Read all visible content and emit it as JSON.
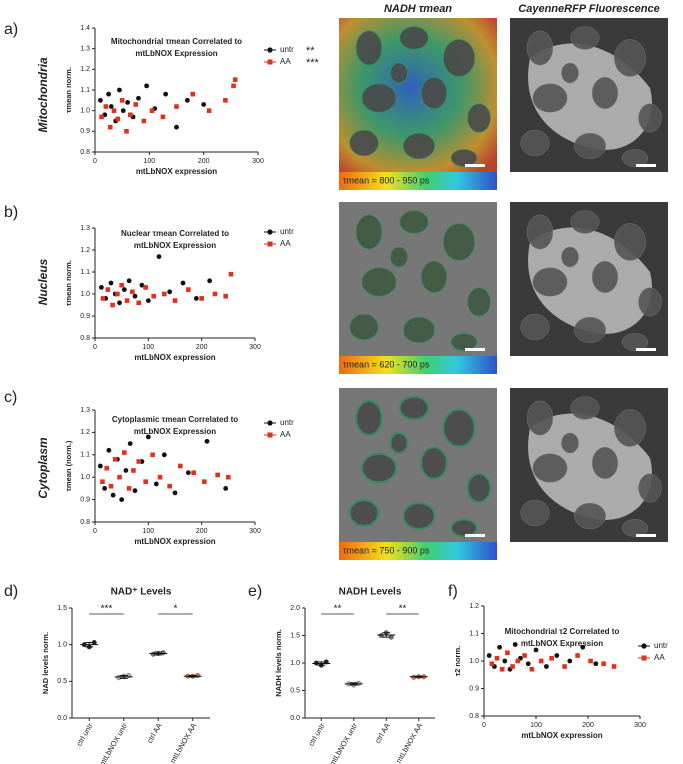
{
  "figure": {
    "panel_labels": [
      "a)",
      "b)",
      "c)",
      "d)",
      "e)",
      "f)"
    ],
    "row_labels": [
      "Mitochondria",
      "Nucleus",
      "Cytoplasm"
    ],
    "column_titles": [
      "NADH τmean",
      "CayenneRFP Fluorescence"
    ],
    "colorbar_labels": [
      "τmean = 800 - 950 ps",
      "τmean = 620 - 700 ps",
      "τmean = 750 - 900 ps"
    ]
  },
  "chart_data": [
    {
      "type": "scatter",
      "title": [
        "Mitochondrial τmean Correlated to",
        "mtLbNOX Expression"
      ],
      "x_label": "mtLbNOX expression",
      "y_label": "τmean norm.",
      "xlim": [
        0,
        300
      ],
      "xticks": [
        0,
        100,
        200,
        300
      ],
      "ylim": [
        0.8,
        1.4
      ],
      "yticks": [
        {
          "value": 0.8,
          "label": "0.8"
        },
        {
          "value": 0.9,
          "label": "0.9"
        },
        {
          "value": 1.0,
          "label": "1.0"
        },
        {
          "value": 1.1,
          "label": "1.1"
        },
        {
          "value": 1.2,
          "label": "1.2"
        },
        {
          "value": 1.3,
          "label": "1.3"
        },
        {
          "value": 1.4,
          "label": "1.4"
        }
      ],
      "legend_notes": [
        "**",
        "***"
      ],
      "series": [
        {
          "name": "untr",
          "color": "#111111",
          "marker": "circle",
          "x": [
            10,
            18,
            25,
            30,
            38,
            45,
            52,
            60,
            70,
            80,
            95,
            110,
            130,
            150,
            170,
            200
          ],
          "values": [
            1.05,
            0.98,
            1.08,
            1.02,
            0.95,
            1.1,
            1.0,
            1.04,
            0.97,
            1.06,
            1.12,
            1.01,
            1.08,
            0.92,
            1.05,
            1.03
          ]
        },
        {
          "name": "AA",
          "color": "#e0301e",
          "marker": "square",
          "x": [
            12,
            20,
            28,
            35,
            42,
            50,
            58,
            65,
            75,
            90,
            105,
            125,
            150,
            180,
            210,
            240,
            255,
            258
          ],
          "values": [
            0.97,
            1.02,
            0.92,
            1.0,
            0.96,
            1.05,
            0.9,
            0.98,
            1.03,
            0.95,
            1.0,
            0.97,
            1.02,
            1.08,
            1.0,
            1.05,
            1.12,
            1.15
          ]
        }
      ]
    },
    {
      "type": "scatter",
      "title": [
        "Nuclear τmean Correlated to",
        "mtLbNOX Expression"
      ],
      "x_label": "mtLbNOX expression",
      "y_label": "τmean norm.",
      "xlim": [
        0,
        300
      ],
      "xticks": [
        0,
        100,
        200,
        300
      ],
      "ylim": [
        0.8,
        1.3
      ],
      "yticks": [
        {
          "value": 0.8,
          "label": "0.8"
        },
        {
          "value": 0.9,
          "label": "0.9"
        },
        {
          "value": 1.0,
          "label": "1.0"
        },
        {
          "value": 1.1,
          "label": "1.1"
        },
        {
          "value": 1.2,
          "label": "1.2"
        },
        {
          "value": 1.3,
          "label": "1.3"
        }
      ],
      "series": [
        {
          "name": "untr",
          "color": "#111111",
          "marker": "circle",
          "x": [
            12,
            20,
            30,
            38,
            46,
            55,
            64,
            75,
            88,
            100,
            120,
            140,
            165,
            190,
            215
          ],
          "values": [
            1.03,
            0.98,
            1.05,
            1.0,
            0.96,
            1.02,
            1.06,
            0.99,
            1.04,
            0.97,
            1.17,
            1.01,
            1.05,
            0.98,
            1.06
          ]
        },
        {
          "name": "AA",
          "color": "#e0301e",
          "marker": "square",
          "x": [
            15,
            24,
            33,
            42,
            50,
            60,
            70,
            82,
            95,
            110,
            130,
            150,
            175,
            200,
            225,
            245,
            255
          ],
          "values": [
            0.98,
            1.02,
            0.95,
            1.0,
            1.04,
            0.97,
            1.01,
            0.96,
            1.03,
            0.99,
            1.0,
            0.97,
            1.02,
            0.98,
            1.0,
            0.99,
            1.09
          ]
        }
      ]
    },
    {
      "type": "scatter",
      "title": [
        "Cytoplasmic τmean Correlated to",
        "mtLbNOX Expression"
      ],
      "x_label": "mtLbNOX expression",
      "y_label": "τmean (norm.)",
      "xlim": [
        0,
        300
      ],
      "xticks": [
        0,
        100,
        200,
        300
      ],
      "ylim": [
        0.8,
        1.3
      ],
      "yticks": [
        {
          "value": 0.8,
          "label": "0.8"
        },
        {
          "value": 0.9,
          "label": "0.9"
        },
        {
          "value": 1.0,
          "label": "1.0"
        },
        {
          "value": 1.1,
          "label": "1.1"
        },
        {
          "value": 1.2,
          "label": "1.2"
        },
        {
          "value": 1.3,
          "label": "1.3"
        }
      ],
      "series": [
        {
          "name": "untr",
          "color": "#111111",
          "marker": "circle",
          "x": [
            10,
            18,
            26,
            34,
            42,
            50,
            58,
            66,
            75,
            88,
            100,
            115,
            130,
            150,
            175,
            210,
            245
          ],
          "values": [
            1.05,
            0.95,
            1.12,
            0.92,
            1.08,
            0.9,
            1.03,
            1.15,
            0.94,
            1.07,
            1.18,
            0.97,
            1.1,
            0.93,
            1.02,
            1.16,
            0.95
          ]
        },
        {
          "name": "AA",
          "color": "#e0301e",
          "marker": "square",
          "x": [
            14,
            22,
            30,
            38,
            46,
            55,
            64,
            72,
            82,
            95,
            108,
            122,
            140,
            160,
            185,
            205,
            230,
            250
          ],
          "values": [
            0.98,
            1.04,
            0.96,
            1.08,
            1.0,
            1.11,
            0.95,
            1.03,
            1.07,
            0.98,
            1.1,
            1.0,
            0.96,
            1.05,
            1.02,
            0.98,
            1.01,
            1.0
          ]
        }
      ]
    },
    {
      "type": "dot",
      "title": "NAD⁺ Levels",
      "y_label": "NAD levels norm.",
      "categories": [
        "ctrl untr",
        "mtLbNOX untr",
        "ctrl AA",
        "mtLbNOX AA"
      ],
      "colors": [
        "#222222",
        "#b0b0b0",
        "#6f6f6f",
        "#e07040"
      ],
      "ylim": [
        0,
        1.5
      ],
      "yticks": [
        {
          "value": 0,
          "label": "0.0"
        },
        {
          "value": 0.5,
          "label": "0.5"
        },
        {
          "value": 1.0,
          "label": "1.0"
        },
        {
          "value": 1.5,
          "label": "1.5"
        }
      ],
      "values": [
        1.0,
        0.56,
        0.88,
        0.57
      ],
      "errors": [
        0.03,
        0.02,
        0.02,
        0.01
      ],
      "points": [
        [
          1.0,
          0.97,
          1.03
        ],
        [
          0.55,
          0.57,
          0.58
        ],
        [
          0.87,
          0.88,
          0.89
        ],
        [
          0.57,
          0.57,
          0.58
        ]
      ],
      "annotations": [
        "***",
        "*"
      ]
    },
    {
      "type": "dot",
      "title": "NADH Levels",
      "y_label": "NADH levels norm.",
      "categories": [
        "ctrl untr",
        "mtLbNOX untr",
        "ctrl AA",
        "mtLbNOX AA"
      ],
      "colors": [
        "#222222",
        "#b0b0b0",
        "#6f6f6f",
        "#e07040"
      ],
      "ylim": [
        0,
        2.0
      ],
      "yticks": [
        {
          "value": 0,
          "label": "0.0"
        },
        {
          "value": 0.5,
          "label": "0.5"
        },
        {
          "value": 1.0,
          "label": "1.0"
        },
        {
          "value": 1.5,
          "label": "1.5"
        },
        {
          "value": 2.0,
          "label": "2.0"
        }
      ],
      "values": [
        0.99,
        0.62,
        1.51,
        0.75
      ],
      "errors": [
        0.03,
        0.02,
        0.04,
        0.01
      ],
      "points": [
        [
          1.0,
          0.96,
          1.02
        ],
        [
          0.62,
          0.6,
          0.63
        ],
        [
          1.5,
          1.55,
          1.47
        ],
        [
          0.74,
          0.75,
          0.75
        ]
      ],
      "annotations": [
        "**",
        "**"
      ]
    },
    {
      "type": "scatter",
      "title": [
        "Mitochondrial τ2 Correlated to",
        "mtLbNOX Expression"
      ],
      "x_label": "mtLbNOX expression",
      "y_label": "τ2 norm.",
      "xlim": [
        0,
        300
      ],
      "xticks": [
        0,
        100,
        200,
        300
      ],
      "ylim": [
        0.8,
        1.2
      ],
      "yticks": [
        {
          "value": 0.8,
          "label": "0.8"
        },
        {
          "value": 0.9,
          "label": "0.9"
        },
        {
          "value": 1.0,
          "label": "1.0"
        },
        {
          "value": 1.1,
          "label": "1.1"
        },
        {
          "value": 1.2,
          "label": "1.2"
        }
      ],
      "series": [
        {
          "name": "untr",
          "color": "#111111",
          "marker": "circle",
          "x": [
            10,
            20,
            30,
            40,
            50,
            60,
            70,
            85,
            100,
            120,
            140,
            165,
            190,
            215
          ],
          "values": [
            1.02,
            0.98,
            1.05,
            1.0,
            0.97,
            1.06,
            1.01,
            0.99,
            1.04,
            0.98,
            1.02,
            1.0,
            1.05,
            0.99
          ]
        },
        {
          "name": "AA",
          "color": "#e0301e",
          "marker": "square",
          "x": [
            15,
            25,
            35,
            45,
            55,
            65,
            78,
            92,
            110,
            130,
            155,
            180,
            205,
            230,
            250
          ],
          "values": [
            0.99,
            1.01,
            0.97,
            1.03,
            0.98,
            1.0,
            1.02,
            0.97,
            1.0,
            1.01,
            0.98,
            1.02,
            1.0,
            0.99,
            0.98
          ]
        }
      ]
    }
  ]
}
